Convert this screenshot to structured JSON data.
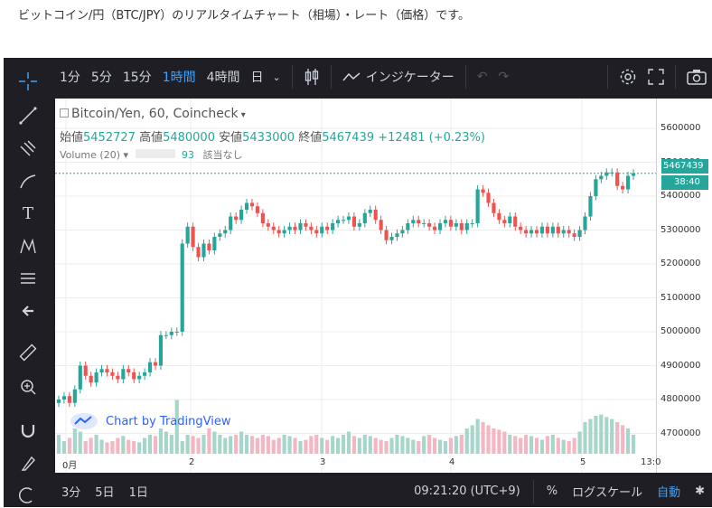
{
  "caption": "ビットコイン/円（BTC/JPY）のリアルタイムチャート（相場）・レート（価格）です。",
  "toolbar": {
    "intervals": [
      "1分",
      "5分",
      "15分",
      "1時間",
      "4時間",
      "日"
    ],
    "active_interval": "1時間",
    "indicator_label": "インジケーター"
  },
  "legend": {
    "title": "Bitcoin/Yen, 60, Coincheck",
    "open_label": "始値",
    "open": "5452727",
    "high_label": "高値",
    "high": "5480000",
    "low_label": "安値",
    "low": "5433000",
    "close_label": "終値",
    "close": "5467439",
    "change": "+12481 (+0.23%)",
    "volume_label": "Volume (20)",
    "volume_value": "93",
    "volume_na": "該当なし"
  },
  "price_badge": "5467439",
  "time_badge": "38:40",
  "tv_label": "Chart by TradingView",
  "bottom": {
    "ranges": [
      "3分",
      "5日",
      "1日"
    ],
    "clock": "09:21:20 (UTC+9)",
    "pct": "%",
    "log": "ログスケール",
    "auto": "自動"
  },
  "colors": {
    "up": "#26a69a",
    "down": "#ef5350",
    "up_vol": "#a5d6c9",
    "down_vol": "#f4b6c2",
    "accent": "#3ba3ff"
  },
  "chart_data": {
    "type": "candlestick",
    "y_ticks": [
      "5600000",
      "5500000",
      "5400000",
      "5300000",
      "5200000",
      "5100000",
      "5000000",
      "4900000",
      "4800000",
      "4700000"
    ],
    "x_ticks": [
      "0月",
      "2",
      "3",
      "4",
      "5",
      "13:0"
    ],
    "ylim": [
      4640000,
      5640000
    ],
    "current_price": 5467439,
    "closes": [
      4800000,
      4810000,
      4790000,
      4830000,
      4900000,
      4870000,
      4850000,
      4880000,
      4890000,
      4880000,
      4870000,
      4860000,
      4890000,
      4880000,
      4860000,
      4870000,
      4880000,
      4910000,
      4900000,
      4990000,
      4990000,
      5000000,
      5000000,
      5260000,
      5310000,
      5250000,
      5220000,
      5260000,
      5240000,
      5280000,
      5290000,
      5300000,
      5340000,
      5330000,
      5360000,
      5380000,
      5370000,
      5350000,
      5320000,
      5310000,
      5300000,
      5290000,
      5300000,
      5310000,
      5300000,
      5320000,
      5310000,
      5300000,
      5290000,
      5310000,
      5300000,
      5320000,
      5330000,
      5330000,
      5340000,
      5310000,
      5320000,
      5350000,
      5360000,
      5330000,
      5300000,
      5270000,
      5280000,
      5290000,
      5300000,
      5320000,
      5330000,
      5320000,
      5320000,
      5310000,
      5300000,
      5320000,
      5330000,
      5310000,
      5320000,
      5300000,
      5320000,
      5320000,
      5420000,
      5410000,
      5380000,
      5350000,
      5330000,
      5320000,
      5340000,
      5310000,
      5300000,
      5290000,
      5300000,
      5290000,
      5310000,
      5290000,
      5310000,
      5290000,
      5300000,
      5290000,
      5280000,
      5300000,
      5340000,
      5400000,
      5450000,
      5460000,
      5470000,
      5470000,
      5430000,
      5420000,
      5460000,
      5467439
    ],
    "volumes": [
      30,
      20,
      25,
      40,
      35,
      20,
      25,
      30,
      22,
      18,
      20,
      25,
      28,
      22,
      20,
      18,
      25,
      30,
      28,
      40,
      35,
      30,
      85,
      20,
      30,
      28,
      25,
      30,
      40,
      35,
      30,
      25,
      28,
      30,
      35,
      30,
      28,
      25,
      30,
      28,
      22,
      25,
      30,
      28,
      25,
      20,
      22,
      28,
      30,
      25,
      22,
      28,
      25,
      30,
      35,
      28,
      25,
      30,
      28,
      25,
      22,
      20,
      25,
      30,
      28,
      25,
      22,
      20,
      28,
      30,
      25,
      22,
      20,
      25,
      28,
      30,
      40,
      45,
      55,
      50,
      45,
      40,
      38,
      35,
      30,
      28,
      25,
      30,
      28,
      25,
      22,
      28,
      30,
      25,
      22,
      20,
      25,
      35,
      50,
      55,
      60,
      62,
      58,
      55,
      50,
      45,
      40,
      30
    ],
    "volume_scale_max": 100
  }
}
